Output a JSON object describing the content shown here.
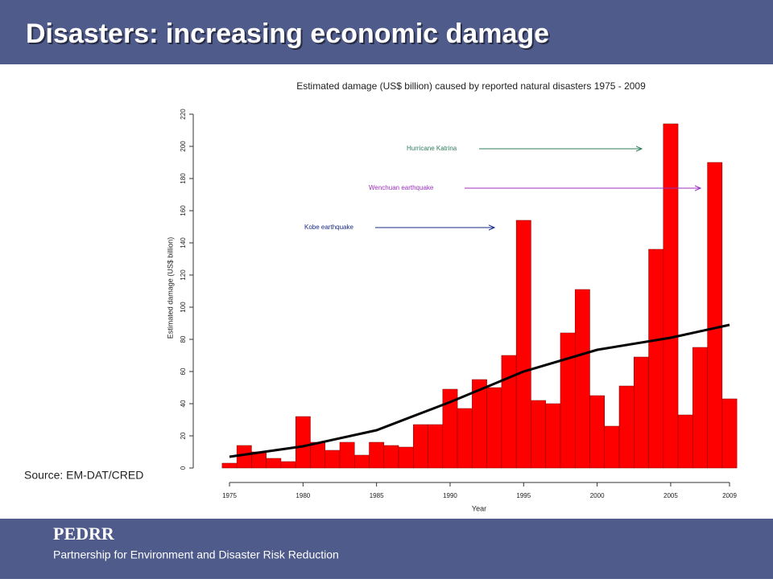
{
  "slide": {
    "title": "Disasters: increasing economic damage",
    "source": "Source: EM-DAT/CRED",
    "footer_title": "PEDRR",
    "footer_subtitle": "Partnership for Environment and Disaster Risk Reduction"
  },
  "chart_data": {
    "type": "bar",
    "title": "Estimated damage (US$ billion) caused by reported natural disasters 1975 - 2009",
    "x_label": "Year",
    "y_label": "Estimated damage (US$ billion)",
    "categories": [
      1975,
      1976,
      1977,
      1978,
      1979,
      1980,
      1981,
      1982,
      1983,
      1984,
      1985,
      1986,
      1987,
      1988,
      1989,
      1990,
      1991,
      1992,
      1993,
      1994,
      1995,
      1996,
      1997,
      1998,
      1999,
      2000,
      2001,
      2002,
      2003,
      2004,
      2005,
      2006,
      2007,
      2008,
      2009
    ],
    "values": [
      3,
      14,
      10,
      6,
      4,
      32,
      16,
      11,
      16,
      8,
      16,
      14,
      13,
      27,
      27,
      49,
      37,
      55,
      50,
      70,
      154,
      42,
      40,
      84,
      111,
      45,
      26,
      51,
      69,
      136,
      214,
      33,
      75,
      190,
      43
    ],
    "color": "#ff0000",
    "trend": {
      "x": [
        1975,
        1980,
        1985,
        1990,
        1995,
        2000,
        2005,
        2009
      ],
      "values": [
        7,
        13.5,
        23.5,
        41,
        60,
        73.5,
        81,
        89
      ],
      "color": "#000000"
    },
    "xticks": [
      1975,
      1980,
      1985,
      1990,
      1995,
      2000,
      2005,
      2009
    ],
    "ylim": [
      0,
      220
    ],
    "yticks": [
      0,
      20,
      40,
      60,
      80,
      100,
      120,
      140,
      160,
      180,
      200,
      220
    ],
    "annotations": [
      {
        "text": "Hurricane Katrina",
        "color": "#2e7d5b"
      },
      {
        "text": "Wenchuan earthquake",
        "color": "#9b30c0"
      },
      {
        "text": "Kobe earthquake",
        "color": "#1a2a8a"
      }
    ]
  }
}
